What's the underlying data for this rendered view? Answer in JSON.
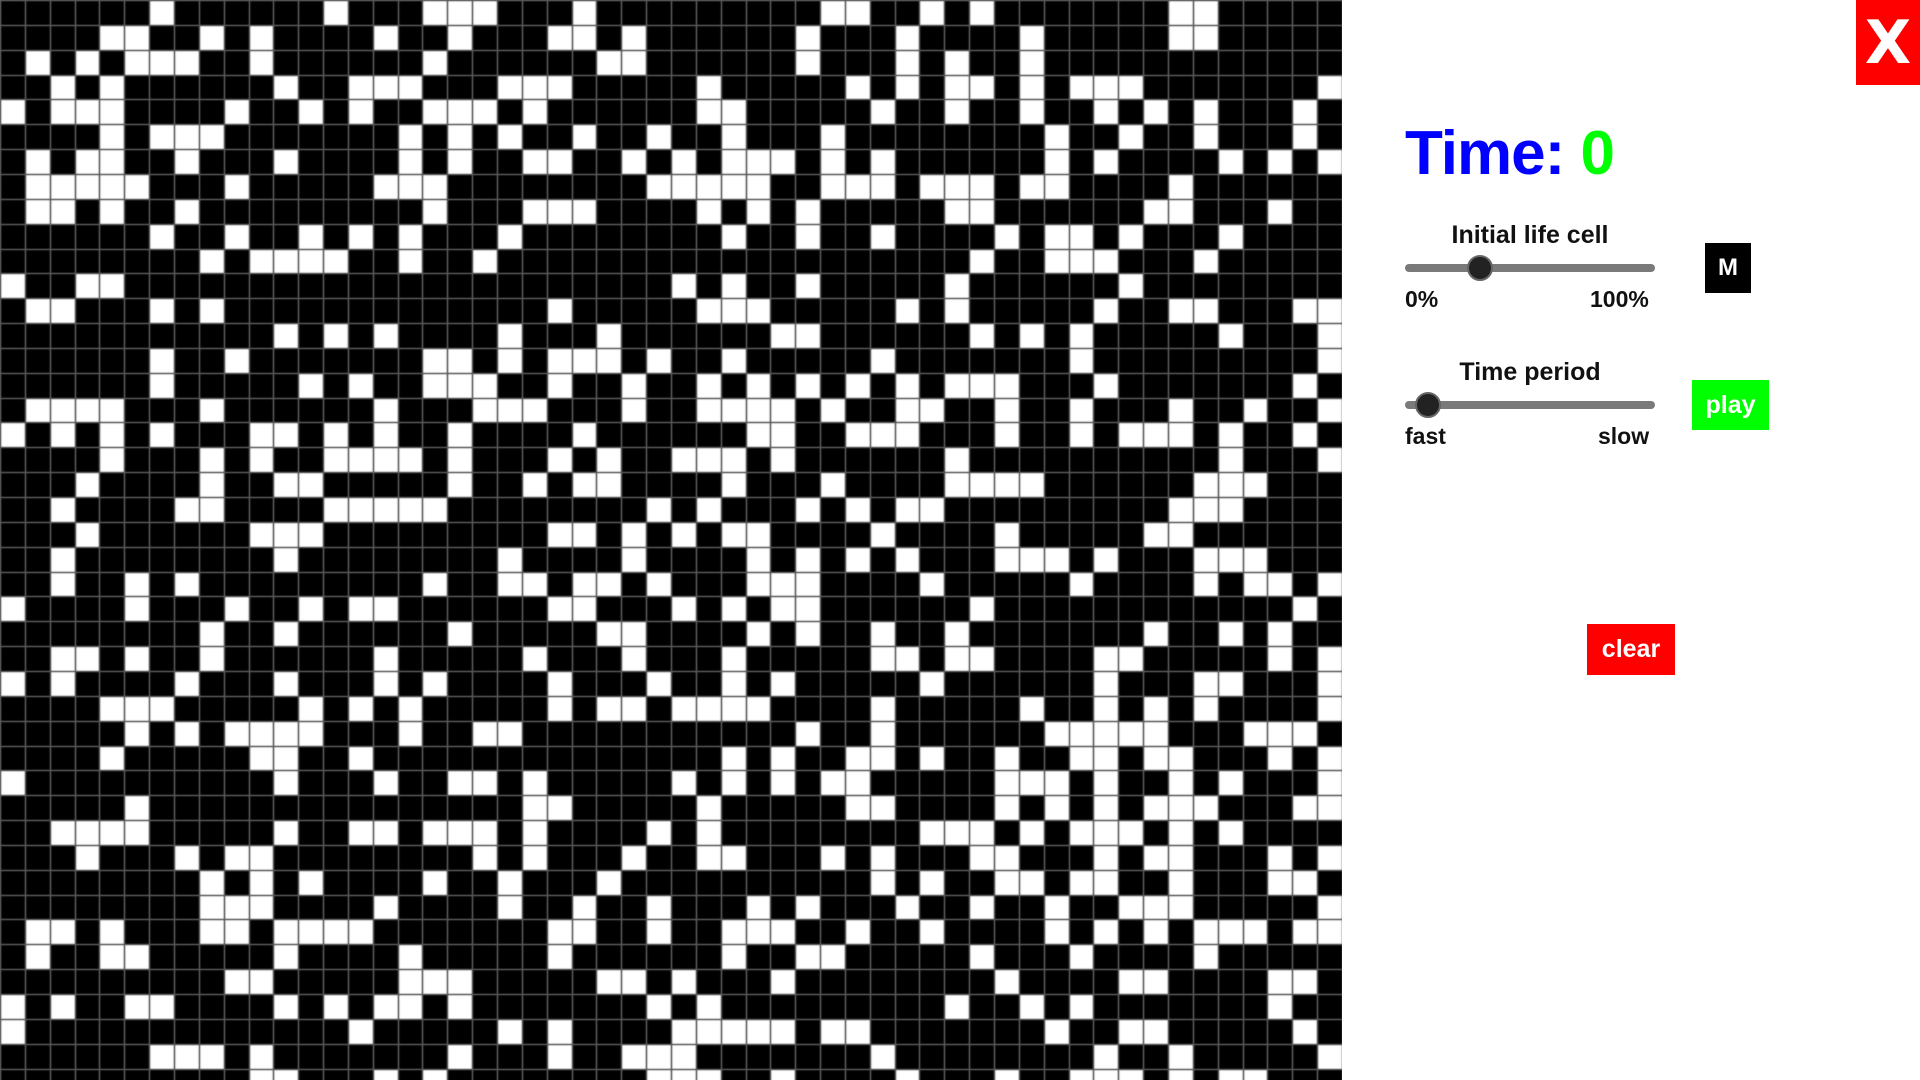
{
  "time": {
    "label": "Time:",
    "value": "0"
  },
  "initial_life_cell": {
    "title": "Initial life cell",
    "min_label": "0%",
    "max_label": "100%",
    "value_fraction": 0.3
  },
  "time_period": {
    "title": "Time period",
    "min_label": "fast",
    "max_label": "slow",
    "value_fraction": 0.09
  },
  "buttons": {
    "close_label": "X",
    "mode_label": "M",
    "play_label": "play",
    "clear_label": "clear"
  },
  "grid": {
    "columns": 54,
    "rows": 44,
    "live_fraction": 0.3,
    "alive_color": "#ffffff",
    "dead_color": "#000000",
    "line_color": "#5a5a5a"
  },
  "colors": {
    "time_label": "#0000ff",
    "time_value": "#00ff00",
    "close": "#ff0000",
    "play": "#00ff00",
    "clear": "#ff0000",
    "mode": "#000000"
  }
}
